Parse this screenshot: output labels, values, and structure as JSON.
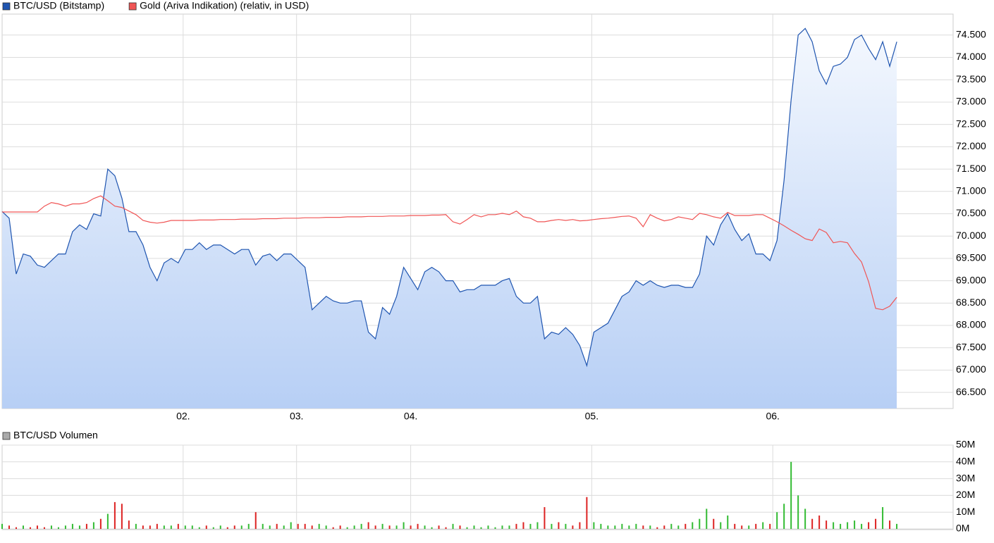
{
  "chart_data": [
    {
      "type": "line",
      "x": [
        0,
        1,
        2,
        3,
        4,
        5,
        6,
        7,
        8,
        9,
        10,
        11,
        12,
        13,
        14,
        15,
        16,
        17,
        18,
        19,
        20,
        21,
        22,
        23,
        24,
        25,
        26,
        27,
        28,
        29,
        30,
        31,
        32,
        33,
        34,
        35,
        36,
        37,
        38,
        39,
        40,
        41,
        42,
        43,
        44,
        45,
        46,
        47,
        48,
        49,
        50,
        51,
        52,
        53,
        54,
        55,
        56,
        57,
        58,
        59,
        60,
        61,
        62,
        63,
        64,
        65,
        66,
        67,
        68,
        69,
        70,
        71,
        72,
        73,
        74,
        75,
        76,
        77,
        78,
        79,
        80,
        81,
        82,
        83,
        84,
        85,
        86,
        87,
        88,
        89,
        90,
        91,
        92,
        93,
        94,
        95,
        96,
        97,
        98,
        99,
        100,
        101,
        102,
        103,
        104,
        105,
        106,
        107,
        108,
        109,
        110,
        111,
        112,
        113,
        114,
        115,
        116,
        117,
        118,
        119,
        120,
        121,
        122,
        123,
        124,
        125,
        126,
        127
      ],
      "xlim": [
        0,
        135
      ],
      "xticks": [
        {
          "value": 25.7,
          "label": "02."
        },
        {
          "value": 41.8,
          "label": "03."
        },
        {
          "value": 58,
          "label": "04."
        },
        {
          "value": 83.7,
          "label": "05."
        },
        {
          "value": 109.4,
          "label": "06."
        }
      ],
      "ylim": [
        66140,
        74970
      ],
      "yticks": [
        {
          "value": 66500,
          "label": "66.500"
        },
        {
          "value": 67000,
          "label": "67.000"
        },
        {
          "value": 67500,
          "label": "67.500"
        },
        {
          "value": 68000,
          "label": "68.000"
        },
        {
          "value": 68500,
          "label": "68.500"
        },
        {
          "value": 69000,
          "label": "69.000"
        },
        {
          "value": 69500,
          "label": "69.500"
        },
        {
          "value": 70000,
          "label": "70.000"
        },
        {
          "value": 70500,
          "label": "70.500"
        },
        {
          "value": 71000,
          "label": "71.000"
        },
        {
          "value": 71500,
          "label": "71.500"
        },
        {
          "value": 72000,
          "label": "72.000"
        },
        {
          "value": 72500,
          "label": "72.500"
        },
        {
          "value": 73000,
          "label": "73.000"
        },
        {
          "value": 73500,
          "label": "73.500"
        },
        {
          "value": 74000,
          "label": "74.000"
        },
        {
          "value": 74500,
          "label": "74.500"
        }
      ],
      "grid": true,
      "series": [
        {
          "name": "BTC/USD (Bitstamp)",
          "color": "#1f55b0",
          "fill": true,
          "values": [
            70550,
            70400,
            69150,
            69600,
            69550,
            69350,
            69300,
            69450,
            69600,
            69600,
            70100,
            70250,
            70150,
            70500,
            70450,
            71500,
            71350,
            70850,
            70100,
            70100,
            69800,
            69300,
            69000,
            69400,
            69500,
            69400,
            69700,
            69700,
            69850,
            69700,
            69800,
            69800,
            69700,
            69600,
            69700,
            69700,
            69350,
            69550,
            69600,
            69450,
            69600,
            69600,
            69450,
            69300,
            68350,
            68500,
            68650,
            68550,
            68500,
            68500,
            68550,
            68550,
            67850,
            67700,
            68400,
            68250,
            68650,
            69300,
            69050,
            68800,
            69200,
            69300,
            69200,
            69000,
            69000,
            68750,
            68800,
            68800,
            68900,
            68900,
            68900,
            69000,
            69050,
            68650,
            68500,
            68500,
            68650,
            67700,
            67850,
            67800,
            67950,
            67800,
            67550,
            67100,
            67850,
            67950,
            68050,
            68350,
            68650,
            68750,
            69000,
            68900,
            69000,
            68900,
            68850,
            68900,
            68900,
            68850,
            68850,
            69150,
            70000,
            69800,
            70250,
            70500,
            70150,
            69900,
            70050,
            69600,
            69600,
            69450,
            69900,
            71250,
            73050,
            74500,
            74650,
            74350,
            73700,
            73400,
            73800,
            73850,
            74000,
            74400,
            74500,
            74200,
            73950,
            74350,
            73800,
            74350
          ]
        },
        {
          "name": "Gold (Ariva Indikation) (relativ, in USD)",
          "color": "#f05555",
          "fill": false,
          "values": [
            70540,
            70540,
            70540,
            70540,
            70540,
            70540,
            70670,
            70750,
            70720,
            70670,
            70720,
            70720,
            70750,
            70840,
            70900,
            70790,
            70670,
            70640,
            70560,
            70480,
            70350,
            70310,
            70290,
            70310,
            70350,
            70350,
            70350,
            70350,
            70360,
            70360,
            70360,
            70370,
            70370,
            70370,
            70380,
            70380,
            70380,
            70390,
            70390,
            70390,
            70400,
            70400,
            70400,
            70410,
            70410,
            70410,
            70420,
            70420,
            70420,
            70430,
            70430,
            70430,
            70440,
            70440,
            70440,
            70450,
            70450,
            70450,
            70460,
            70460,
            70460,
            70470,
            70470,
            70480,
            70320,
            70270,
            70370,
            70480,
            70430,
            70480,
            70480,
            70510,
            70480,
            70560,
            70430,
            70400,
            70320,
            70320,
            70350,
            70370,
            70350,
            70370,
            70340,
            70350,
            70370,
            70390,
            70400,
            70420,
            70440,
            70450,
            70400,
            70210,
            70480,
            70400,
            70340,
            70370,
            70430,
            70400,
            70370,
            70510,
            70480,
            70430,
            70400,
            70530,
            70460,
            70460,
            70460,
            70480,
            70480,
            70400,
            70320,
            70230,
            70130,
            70040,
            69940,
            69900,
            70160,
            70080,
            69850,
            69880,
            69850,
            69610,
            69420,
            68980,
            68380,
            68350,
            68430,
            68630
          ]
        }
      ]
    },
    {
      "type": "bar",
      "ylim": [
        0,
        50000000
      ],
      "yticks": [
        {
          "value": 0,
          "label": "0M"
        },
        {
          "value": 10000000,
          "label": "10M"
        },
        {
          "value": 20000000,
          "label": "20M"
        },
        {
          "value": 30000000,
          "label": "30M"
        },
        {
          "value": 40000000,
          "label": "40M"
        },
        {
          "value": 50000000,
          "label": "50M"
        }
      ],
      "grid": true,
      "up_color": "#33bb33",
      "down_color": "#dd2222",
      "series": [
        {
          "name": "BTC/USD Volumen",
          "color": "#aaaaaa",
          "values": [
            3000000,
            2000000,
            1000000,
            2000000,
            1000000,
            2000000,
            1000000,
            2000000,
            1000000,
            2000000,
            3000000,
            2000000,
            3000000,
            4000000,
            6000000,
            9000000,
            16000000,
            15000000,
            5000000,
            3000000,
            2000000,
            2000000,
            3000000,
            2000000,
            2000000,
            3000000,
            2000000,
            2000000,
            1000000,
            2000000,
            1000000,
            2000000,
            1000000,
            2000000,
            2000000,
            3000000,
            10000000,
            3000000,
            2000000,
            3000000,
            2000000,
            4000000,
            3000000,
            3000000,
            2000000,
            3000000,
            2000000,
            1000000,
            2000000,
            1000000,
            2000000,
            3000000,
            4000000,
            2000000,
            3000000,
            2000000,
            2000000,
            4000000,
            2000000,
            3000000,
            2000000,
            1000000,
            2000000,
            1000000,
            3000000,
            2000000,
            1000000,
            2000000,
            1000000,
            2000000,
            1000000,
            2000000,
            2000000,
            3000000,
            4000000,
            3000000,
            4000000,
            13000000,
            3000000,
            4000000,
            3000000,
            2000000,
            4000000,
            19000000,
            4000000,
            3000000,
            2000000,
            2000000,
            3000000,
            2000000,
            3000000,
            2000000,
            2000000,
            1000000,
            2000000,
            3000000,
            2000000,
            3000000,
            4000000,
            6000000,
            12000000,
            6000000,
            4000000,
            8000000,
            3000000,
            2000000,
            2000000,
            3000000,
            4000000,
            3000000,
            10000000,
            15000000,
            40000000,
            20000000,
            12000000,
            6000000,
            8000000,
            5000000,
            4000000,
            3000000,
            4000000,
            5000000,
            3000000,
            4000000,
            6000000,
            13000000,
            5000000,
            3000000
          ]
        }
      ]
    }
  ]
}
